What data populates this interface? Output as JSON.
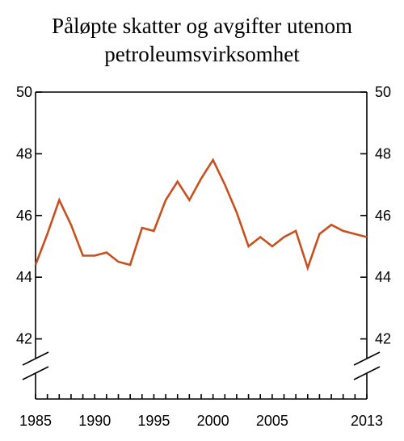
{
  "chart_data": {
    "type": "line",
    "title_lines": [
      "Påløpte skatter og avgifter utenom",
      "petroleumsvirksomhet"
    ],
    "xlabel": "",
    "ylabel": "",
    "x_tick_labels": [
      "1985",
      "1990",
      "1995",
      "2000",
      "2005",
      "2013"
    ],
    "y_tick_labels": [
      "42",
      "44",
      "46",
      "48",
      "50"
    ],
    "ylim": [
      41,
      50
    ],
    "xlim": [
      1985,
      2013
    ],
    "y_axis_break": true,
    "grid": false,
    "legend": "none",
    "series": [
      {
        "color": "#c8501e",
        "x": [
          1985,
          1986,
          1987,
          1988,
          1989,
          1990,
          1991,
          1992,
          1993,
          1994,
          1995,
          1996,
          1997,
          1998,
          1999,
          2000,
          2001,
          2002,
          2003,
          2004,
          2005,
          2006,
          2007,
          2008,
          2009,
          2010,
          2011,
          2012,
          2013
        ],
        "values": [
          44.4,
          45.4,
          46.5,
          45.7,
          44.7,
          44.7,
          44.8,
          44.5,
          44.4,
          45.6,
          45.5,
          46.5,
          47.1,
          46.5,
          47.2,
          47.8,
          47.0,
          46.1,
          45.0,
          45.3,
          45.0,
          45.3,
          45.5,
          44.3,
          45.4,
          45.7,
          45.5,
          45.4,
          45.3
        ]
      }
    ]
  }
}
